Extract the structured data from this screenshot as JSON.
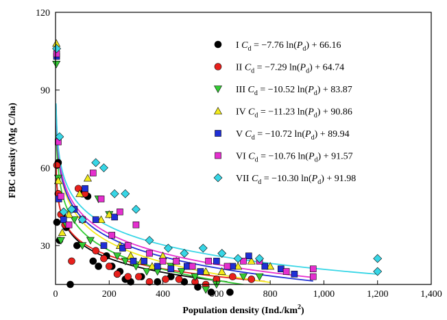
{
  "chart_data": {
    "type": "scatter",
    "xlabel": "Population density (Ind./km",
    "xlabel_sup": "2",
    "xlabel_end": ")",
    "ylabel": "FBC density (Mg C/ha)",
    "xlim": [
      0,
      1400
    ],
    "ylim": [
      15,
      120
    ],
    "x_ticks": [
      0,
      200,
      400,
      600,
      800,
      1000,
      1200,
      1400
    ],
    "x_tick_labels": [
      "0",
      "200",
      "400",
      "600",
      "800",
      "1,000",
      "1,200",
      "1,400"
    ],
    "y_ticks": [
      30,
      60,
      90,
      120
    ],
    "y_tick_labels": [
      "30",
      "60",
      "90",
      "120"
    ],
    "grid": false,
    "legend_position": "top-right",
    "series": [
      {
        "name": "I",
        "eq_prefix": "I ",
        "eq_mid": " = −7.76 ln(",
        "eq_end": ") + 66.16",
        "a": -7.76,
        "b": 66.16,
        "color": "#000000",
        "marker": "circle",
        "fit_range": [
          2,
          640
        ],
        "points": [
          [
            5,
            39
          ],
          [
            10,
            62
          ],
          [
            15,
            32
          ],
          [
            25,
            42
          ],
          [
            40,
            37
          ],
          [
            55,
            15
          ],
          [
            80,
            30
          ],
          [
            100,
            50
          ],
          [
            120,
            49
          ],
          [
            140,
            24
          ],
          [
            160,
            22
          ],
          [
            190,
            26
          ],
          [
            210,
            22
          ],
          [
            240,
            20
          ],
          [
            260,
            17
          ],
          [
            280,
            16
          ],
          [
            320,
            18
          ],
          [
            380,
            16
          ],
          [
            430,
            18
          ],
          [
            480,
            16
          ],
          [
            530,
            14
          ],
          [
            580,
            12
          ],
          [
            650,
            12
          ]
        ]
      },
      {
        "name": "II",
        "eq_prefix": "II ",
        "eq_mid": " = −7.29 ln(",
        "eq_end": ") + 64.74",
        "a": -7.29,
        "b": 64.74,
        "color": "#e8201c",
        "marker": "circle",
        "fit_range": [
          2,
          780
        ],
        "points": [
          [
            5,
            61
          ],
          [
            10,
            50
          ],
          [
            20,
            42
          ],
          [
            35,
            38
          ],
          [
            60,
            24
          ],
          [
            85,
            52
          ],
          [
            110,
            50
          ],
          [
            150,
            28
          ],
          [
            180,
            25
          ],
          [
            200,
            22
          ],
          [
            230,
            19
          ],
          [
            270,
            18
          ],
          [
            310,
            18
          ],
          [
            350,
            16
          ],
          [
            410,
            17
          ],
          [
            460,
            17
          ],
          [
            520,
            16
          ],
          [
            560,
            15
          ],
          [
            600,
            17
          ],
          [
            660,
            18
          ],
          [
            730,
            17
          ]
        ]
      },
      {
        "name": "III",
        "eq_prefix": "III ",
        "eq_mid": " = −10.52 ln(",
        "eq_end": ") + 83.87",
        "a": -10.52,
        "b": 83.87,
        "color": "#33cc33",
        "marker": "triangle-down",
        "fit_range": [
          2,
          780
        ],
        "points": [
          [
            3,
            100
          ],
          [
            10,
            56
          ],
          [
            20,
            32
          ],
          [
            40,
            38
          ],
          [
            70,
            40
          ],
          [
            100,
            30
          ],
          [
            130,
            32
          ],
          [
            160,
            48
          ],
          [
            200,
            42
          ],
          [
            230,
            26
          ],
          [
            260,
            24
          ],
          [
            300,
            22
          ],
          [
            340,
            20
          ],
          [
            380,
            20
          ],
          [
            430,
            22
          ],
          [
            470,
            20
          ],
          [
            520,
            18
          ],
          [
            560,
            13
          ],
          [
            600,
            15
          ],
          [
            700,
            18
          ],
          [
            760,
            18
          ]
        ]
      },
      {
        "name": "IV",
        "eq_prefix": "IV ",
        "eq_mid": " = −11.23 ln(",
        "eq_end": ") + 90.86",
        "a": -11.23,
        "b": 90.86,
        "color": "#f2ea1c",
        "marker": "triangle-up",
        "fit_range": [
          2,
          800
        ],
        "points": [
          [
            3,
            108
          ],
          [
            10,
            55
          ],
          [
            25,
            35
          ],
          [
            50,
            42
          ],
          [
            90,
            50
          ],
          [
            120,
            56
          ],
          [
            170,
            40
          ],
          [
            200,
            42
          ],
          [
            240,
            30
          ],
          [
            280,
            26
          ],
          [
            320,
            24
          ],
          [
            360,
            22
          ],
          [
            400,
            26
          ],
          [
            450,
            24
          ],
          [
            500,
            22
          ],
          [
            560,
            20
          ],
          [
            620,
            20
          ],
          [
            680,
            22
          ],
          [
            730,
            24
          ],
          [
            800,
            22
          ]
        ]
      },
      {
        "name": "V",
        "eq_prefix": "V ",
        "eq_mid": " = −10.72 ln(",
        "eq_end": ") + 89.94",
        "a": -10.72,
        "b": 89.94,
        "color": "#1f2fd6",
        "marker": "square",
        "fit_range": [
          2,
          960
        ],
        "points": [
          [
            4,
            103
          ],
          [
            12,
            48
          ],
          [
            30,
            40
          ],
          [
            70,
            44
          ],
          [
            110,
            52
          ],
          [
            150,
            40
          ],
          [
            180,
            30
          ],
          [
            220,
            41
          ],
          [
            250,
            29
          ],
          [
            290,
            24
          ],
          [
            330,
            24
          ],
          [
            380,
            22
          ],
          [
            430,
            21
          ],
          [
            490,
            22
          ],
          [
            540,
            20
          ],
          [
            600,
            24
          ],
          [
            660,
            22
          ],
          [
            720,
            26
          ],
          [
            780,
            22
          ],
          [
            840,
            21
          ],
          [
            890,
            19
          ]
        ]
      },
      {
        "name": "VI",
        "eq_prefix": "VI ",
        "eq_mid": " = −10.76 ln(",
        "eq_end": ") + 91.57",
        "a": -10.76,
        "b": 91.57,
        "color": "#e52fcf",
        "marker": "square",
        "fit_range": [
          2,
          960
        ],
        "points": [
          [
            4,
            104
          ],
          [
            10,
            70
          ],
          [
            20,
            49
          ],
          [
            50,
            38
          ],
          [
            100,
            40
          ],
          [
            140,
            58
          ],
          [
            170,
            48
          ],
          [
            210,
            34
          ],
          [
            240,
            43
          ],
          [
            270,
            30
          ],
          [
            300,
            38
          ],
          [
            350,
            27
          ],
          [
            400,
            24
          ],
          [
            450,
            24
          ],
          [
            510,
            22
          ],
          [
            570,
            24
          ],
          [
            640,
            22
          ],
          [
            700,
            24
          ],
          [
            760,
            24
          ],
          [
            860,
            20
          ],
          [
            960,
            21
          ],
          [
            960,
            18
          ]
        ]
      },
      {
        "name": "VII",
        "eq_prefix": "VII ",
        "eq_mid": " = −10.30 ln(",
        "eq_end": ") + 91.98",
        "a": -10.3,
        "b": 91.98,
        "color": "#37d6e6",
        "marker": "diamond",
        "fit_range": [
          2,
          1200
        ],
        "points": [
          [
            4,
            106
          ],
          [
            15,
            72
          ],
          [
            30,
            43
          ],
          [
            60,
            44
          ],
          [
            100,
            40
          ],
          [
            150,
            62
          ],
          [
            180,
            60
          ],
          [
            220,
            50
          ],
          [
            260,
            50
          ],
          [
            300,
            44
          ],
          [
            350,
            32
          ],
          [
            420,
            29
          ],
          [
            480,
            27
          ],
          [
            550,
            29
          ],
          [
            620,
            27
          ],
          [
            680,
            25
          ],
          [
            760,
            25
          ],
          [
            1200,
            25
          ],
          [
            1200,
            20
          ]
        ]
      }
    ]
  }
}
